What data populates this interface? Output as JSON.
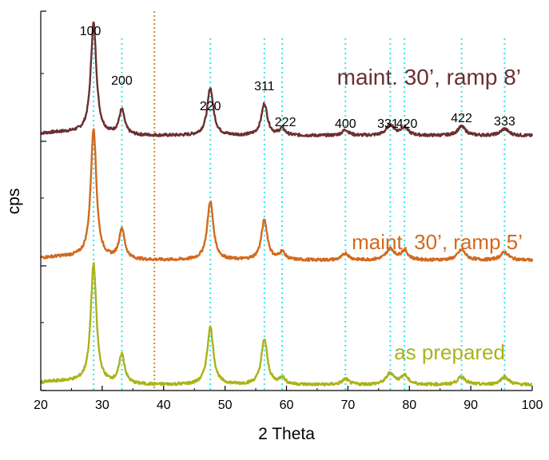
{
  "chart_data": {
    "type": "line",
    "xlabel": "2 Theta",
    "ylabel": "cps",
    "xlim": [
      20,
      100
    ],
    "x_ticks": [
      "20",
      "30",
      "40",
      "50",
      "60",
      "70",
      "80",
      "90",
      "100"
    ],
    "grid": false,
    "legend": "none",
    "colors": {
      "top": "#6b2f2f",
      "middle": "#d2691e",
      "bottom": "#a9b319",
      "reference_lines": "#33e6e6",
      "marker_line": "#e08a1e"
    },
    "reference_line_x": [
      28.6,
      33.2,
      47.6,
      56.4,
      59.3,
      69.6,
      76.9,
      79.2,
      88.5,
      95.5
    ],
    "marker_line_x": 38.5,
    "peak_labels": [
      {
        "label": "100",
        "x": 28.6
      },
      {
        "label": "200",
        "x": 33.2
      },
      {
        "label": "220",
        "x": 47.6
      },
      {
        "label": "311",
        "x": 56.4
      },
      {
        "label": "222",
        "x": 59.3
      },
      {
        "label": "400",
        "x": 69.6
      },
      {
        "label": "331",
        "x": 76.9
      },
      {
        "label": "420",
        "x": 79.2
      },
      {
        "label": "422",
        "x": 88.5
      },
      {
        "label": "333",
        "x": 95.5
      }
    ],
    "peaks": [
      {
        "x": 28.6,
        "width": 0.55
      },
      {
        "x": 33.2,
        "width": 0.55
      },
      {
        "x": 47.6,
        "width": 0.6
      },
      {
        "x": 56.4,
        "width": 0.6
      },
      {
        "x": 59.3,
        "width": 0.55
      },
      {
        "x": 69.6,
        "width": 0.65
      },
      {
        "x": 76.9,
        "width": 0.8
      },
      {
        "x": 79.2,
        "width": 0.7
      },
      {
        "x": 88.5,
        "width": 0.8
      },
      {
        "x": 95.5,
        "width": 0.8
      }
    ],
    "series": [
      {
        "name": "maint. 30’, ramp 8’",
        "color": "#6b2f2f",
        "offset": 2.2,
        "baseline": 0.0,
        "peak_heights": [
          0.98,
          0.22,
          0.42,
          0.28,
          0.06,
          0.05,
          0.09,
          0.07,
          0.08,
          0.06
        ]
      },
      {
        "name": "maint. 30’, ramp 5’",
        "color": "#d2691e",
        "offset": 1.1,
        "baseline": 0.0,
        "peak_heights": [
          1.15,
          0.27,
          0.52,
          0.35,
          0.07,
          0.06,
          0.1,
          0.08,
          0.09,
          0.07
        ]
      },
      {
        "name": "as prepared",
        "color": "#a9b319",
        "offset": 0.0,
        "baseline": 0.0,
        "peak_heights": [
          1.05,
          0.26,
          0.51,
          0.4,
          0.06,
          0.05,
          0.1,
          0.08,
          0.07,
          0.07
        ]
      }
    ],
    "ylim": [
      -0.05,
      3.3
    ]
  }
}
